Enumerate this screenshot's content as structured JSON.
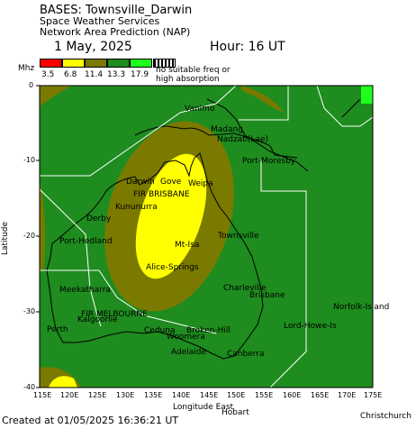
{
  "header": {
    "title": "BASES: Townsville_Darwin",
    "org": "Space Weather Services",
    "product": "Network Area Prediction (NAP)",
    "date": "1 May, 2025",
    "hour": "Hour: 16 UT"
  },
  "legend": {
    "unit": "Mhz",
    "items": [
      {
        "label": "3.5",
        "color": "#ff0000"
      },
      {
        "label": "6.8",
        "color": "#ffff00"
      },
      {
        "label": "11.4",
        "color": "#7a7a00"
      },
      {
        "label": "13.3",
        "color": "#1e8c1e"
      },
      {
        "label": "17.9",
        "color": "#1eff1e"
      },
      {
        "label": "",
        "color": "hatch"
      }
    ],
    "note_line1": "no suitable freq or",
    "note_line2": "high absorption"
  },
  "axes": {
    "ylabel": "Latitude",
    "xlabel": "Longitude East",
    "yticks": [
      "0",
      "-10",
      "-20",
      "-30",
      "-40"
    ],
    "xticks": [
      "115E",
      "120E",
      "125E",
      "130E",
      "135E",
      "140E",
      "145E",
      "150E",
      "155E",
      "160E",
      "165E",
      "170E",
      "175E"
    ]
  },
  "places": [
    {
      "name": "Vanimo"
    },
    {
      "name": "Madang"
    },
    {
      "name": "Nadzab(Lae)"
    },
    {
      "name": "Port-Moresby"
    },
    {
      "name": "Darwin"
    },
    {
      "name": "Gove"
    },
    {
      "name": "Weipa"
    },
    {
      "name": "FIR BRISBANE"
    },
    {
      "name": "Kununurra"
    },
    {
      "name": "Derby"
    },
    {
      "name": "Townsville"
    },
    {
      "name": "Port-Hedland"
    },
    {
      "name": "Mt-Isa"
    },
    {
      "name": "Alice-Springs"
    },
    {
      "name": "Charleville"
    },
    {
      "name": "Brisbane"
    },
    {
      "name": "Meekatharra"
    },
    {
      "name": "FIR MELBOURNE"
    },
    {
      "name": "Kalgoorlie"
    },
    {
      "name": "Norfolk-Island"
    },
    {
      "name": "Lord-Howe-Is"
    },
    {
      "name": "Perth"
    },
    {
      "name": "Ceduna"
    },
    {
      "name": "Broken-Hill"
    },
    {
      "name": "Woomera"
    },
    {
      "name": "Adelaide"
    },
    {
      "name": "Canberra"
    },
    {
      "name": "Hobart"
    }
  ],
  "footer": {
    "created": "Created at 01/05/2025 16:36:21 UT",
    "station": "Christchurch"
  },
  "colors": {
    "zone_outer": "#1e8c1e",
    "zone_mid": "#7a7a00",
    "zone_inner": "#ffff00",
    "zone_bright": "#1eff1e"
  }
}
